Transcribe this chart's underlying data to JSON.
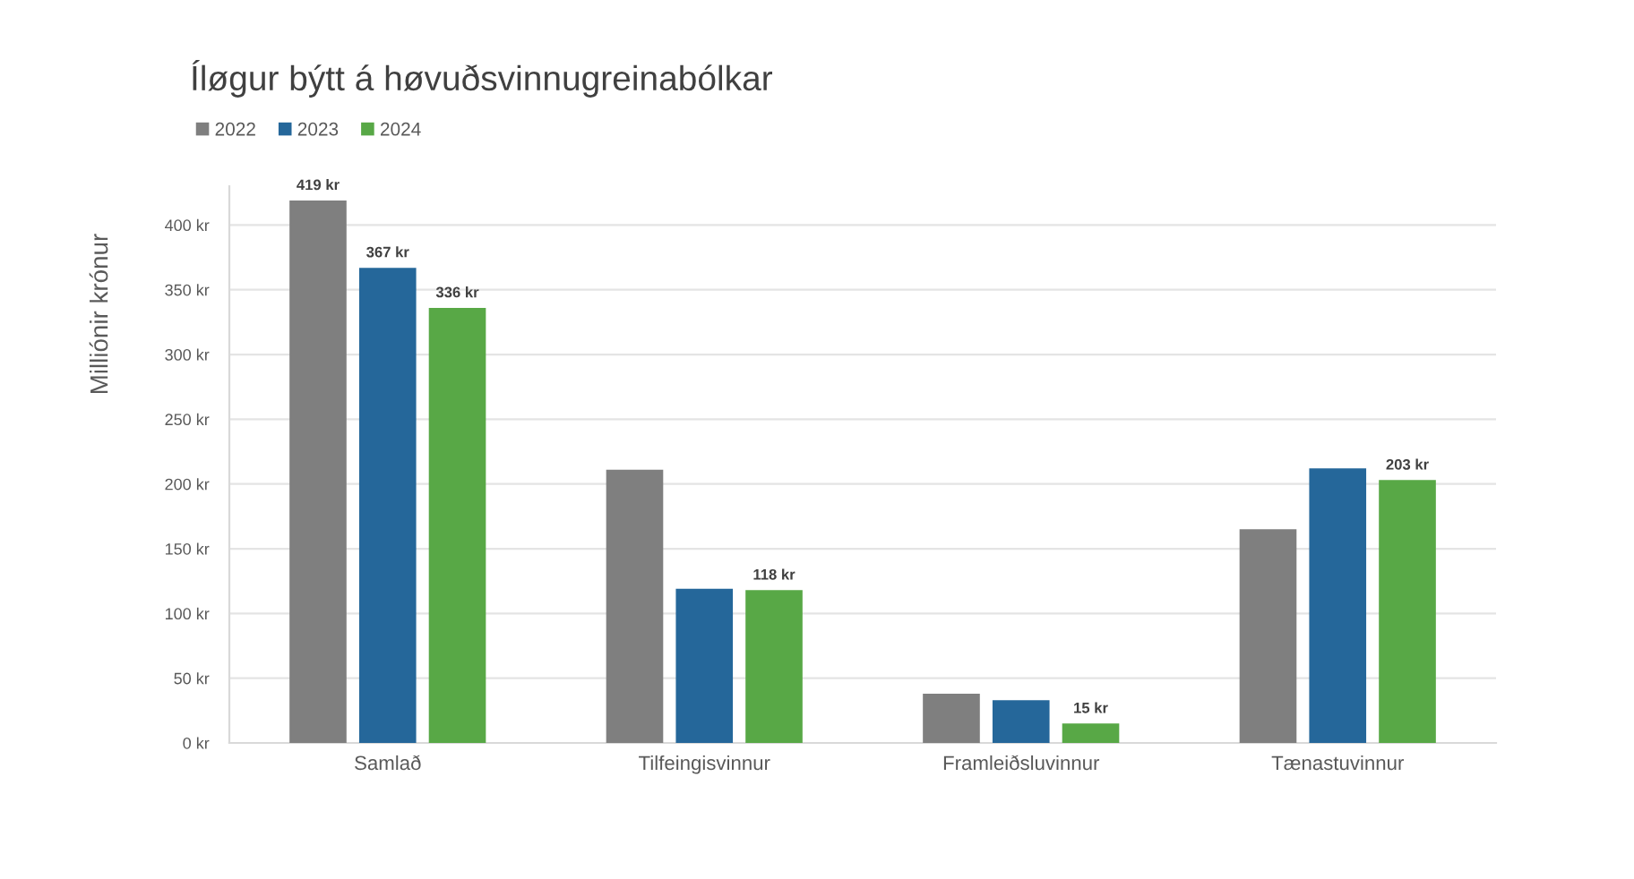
{
  "chart_data": {
    "type": "bar",
    "title": "Íløgur býtt á høvuðsvinnugreinabólkar",
    "ylabel": "Milliónir krónur",
    "categories": [
      "Samlað",
      "Tilfeingisvinnur",
      "Framleiðsluvinnur",
      "Tænastuvinnur"
    ],
    "series": [
      {
        "name": "2022",
        "color": "#7f7f7f",
        "values": [
          419,
          211,
          38,
          165
        ],
        "value_labels": [
          "419 kr",
          null,
          null,
          null
        ]
      },
      {
        "name": "2023",
        "color": "#25679a",
        "values": [
          367,
          119,
          33,
          212
        ],
        "value_labels": [
          "367 kr",
          null,
          null,
          null
        ]
      },
      {
        "name": "2024",
        "color": "#58a846",
        "values": [
          336,
          118,
          15,
          203
        ],
        "value_labels": [
          "336 kr",
          "118 kr",
          "15 kr",
          "203 kr"
        ]
      }
    ],
    "ylim": [
      0,
      430
    ],
    "yticks": [
      {
        "value": 0,
        "label": "0 kr"
      },
      {
        "value": 50,
        "label": "50 kr"
      },
      {
        "value": 100,
        "label": "100 kr"
      },
      {
        "value": 150,
        "label": "150 kr"
      },
      {
        "value": 200,
        "label": "200 kr"
      },
      {
        "value": 250,
        "label": "250 kr"
      },
      {
        "value": 300,
        "label": "300 kr"
      },
      {
        "value": 350,
        "label": "350 kr"
      },
      {
        "value": 400,
        "label": "400 kr"
      }
    ],
    "grid": "y",
    "legend": "top left"
  }
}
